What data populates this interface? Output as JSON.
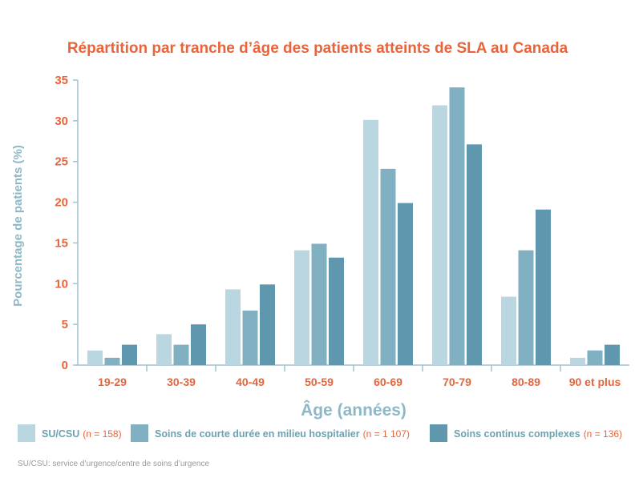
{
  "chart_data": {
    "type": "bar",
    "title": "Répartition par tranche d’âge des patients atteints de SLA au Canada",
    "xlabel": "Âge (années)",
    "ylabel": "Pourcentage de patients (%)",
    "categories": [
      "19-29",
      "30-39",
      "40-49",
      "50-59",
      "60-69",
      "70-79",
      "80-89",
      "90 et plus"
    ],
    "ylim": [
      0,
      35
    ],
    "yticks": [
      0,
      5,
      10,
      15,
      20,
      25,
      30,
      35
    ],
    "legend_position": "bottom",
    "series": [
      {
        "name": "SU/CSU",
        "n_label": "(n = 158)",
        "color": "#b9d6e1",
        "values": [
          1.8,
          3.8,
          9.3,
          14.1,
          30.1,
          31.9,
          8.4,
          0.9
        ]
      },
      {
        "name": "Soins de courte durée en milieu hospitalier",
        "n_label": "(n = 1 107)",
        "color": "#80b0c2",
        "values": [
          0.9,
          2.5,
          6.7,
          14.9,
          24.1,
          34.1,
          14.1,
          1.8
        ]
      },
      {
        "name": "Soins continus complexes",
        "n_label": "(n = 136)",
        "color": "#5f98ae",
        "values": [
          2.5,
          5.0,
          9.9,
          13.2,
          19.9,
          27.1,
          19.1,
          2.5
        ]
      }
    ],
    "footnote": "SU/CSU: service d’urgence/centre de soins d’urgence"
  },
  "colors": {
    "accent": "#e8643a",
    "axis_label": "#8fb8c7",
    "axis_line": "#9fc3d1"
  }
}
